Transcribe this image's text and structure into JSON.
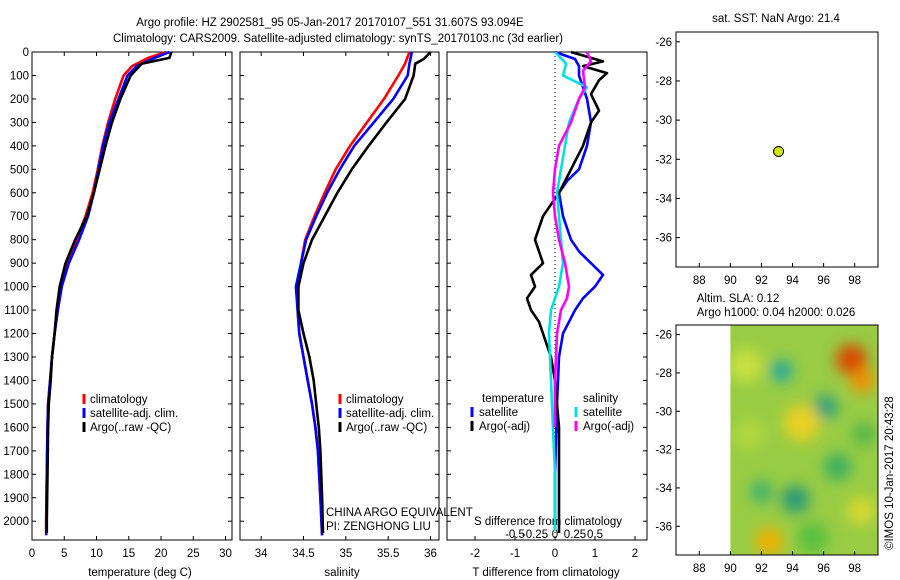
{
  "header": {
    "line1": "Argo profile: HZ 2902581_95 05-Jan-2017 20170107_551 31.607S 93.094E",
    "line2": "Climatology: CARS2009. Satellite-adjusted climatology: synTS_20170103.nc (3d earlier)"
  },
  "footer": {
    "line1": "CHINA ARGO EQUIVALENT",
    "line2": "PI: ZENGHONG LIU",
    "stamp": "©IMOS 10-Jan-2017 20:43:28"
  },
  "colors": {
    "climatology": "#ff0000",
    "satellite": "#0000ff",
    "argo": "#000000",
    "sat_diff": "#00e0e0",
    "argo_s_diff": "#ff00ff",
    "marker": "#d4e600"
  },
  "chart_data": [
    {
      "id": "temperature",
      "type": "line",
      "xlabel": "temperature (deg C)",
      "ylabel": "",
      "xlim": [
        0,
        31
      ],
      "ylim": [
        2080,
        0
      ],
      "xticks": [
        "0",
        "5",
        "10",
        "15",
        "20",
        "25",
        "30"
      ],
      "yticks": [
        "0",
        "100",
        "200",
        "300",
        "400",
        "500",
        "600",
        "700",
        "800",
        "900",
        "1000",
        "1100",
        "1200",
        "1300",
        "1400",
        "1500",
        "1600",
        "1700",
        "1800",
        "1900",
        "2000"
      ],
      "legend": [
        "climatology",
        "satellite-adj. clim.",
        "Argo(..raw -QC)"
      ],
      "series": [
        {
          "name": "climatology",
          "color": "#ff0000",
          "x": [
            20.8,
            18,
            15.5,
            14.2,
            12.9,
            11.8,
            10.9,
            10.2,
            9.4,
            8.3,
            6.9,
            5.5,
            4.6,
            4.0,
            3.5,
            3.1,
            2.8,
            2.5,
            2.4,
            2.3,
            2.2,
            2.2
          ],
          "y": [
            0,
            25,
            60,
            100,
            200,
            300,
            400,
            500,
            600,
            700,
            800,
            900,
            1000,
            1100,
            1200,
            1300,
            1400,
            1500,
            1600,
            1800,
            2000,
            2060
          ]
        },
        {
          "name": "satellite-adj. clim.",
          "color": "#0000ff",
          "x": [
            21.3,
            19,
            16.2,
            14.8,
            13.4,
            12,
            11,
            10.3,
            9.6,
            8.7,
            7.3,
            5.7,
            4.6,
            4.0,
            3.5,
            3.1,
            2.8,
            2.5,
            2.4,
            2.3,
            2.2,
            2.2
          ],
          "y": [
            0,
            25,
            60,
            100,
            200,
            300,
            400,
            500,
            600,
            700,
            800,
            900,
            1000,
            1100,
            1200,
            1300,
            1400,
            1500,
            1600,
            1800,
            2000,
            2060
          ]
        },
        {
          "name": "Argo(..raw -QC)",
          "color": "#000000",
          "x": [
            21.6,
            21.3,
            17,
            15.3,
            13.7,
            12.4,
            11.4,
            10.5,
            9.6,
            8.5,
            6.7,
            5.2,
            4.3,
            3.8,
            3.5,
            3.1,
            2.9,
            2.6,
            2.5,
            2.4,
            2.3,
            2.3
          ],
          "y": [
            0,
            25,
            50,
            100,
            200,
            300,
            400,
            500,
            600,
            700,
            800,
            900,
            1000,
            1100,
            1200,
            1300,
            1400,
            1500,
            1600,
            1800,
            2000,
            2050
          ]
        }
      ]
    },
    {
      "id": "salinity",
      "type": "line",
      "xlabel": "salinity",
      "xlim": [
        33.75,
        36.1
      ],
      "ylim": [
        2080,
        0
      ],
      "xticks": [
        "34",
        "34.5",
        "35",
        "35.5",
        "36"
      ],
      "legend": [
        "climatology",
        "satellite-adj. clim.",
        "Argo(..raw -QC)"
      ],
      "series": [
        {
          "name": "climatology",
          "color": "#ff0000",
          "x": [
            35.75,
            35.7,
            35.62,
            35.45,
            35.25,
            35.05,
            34.88,
            34.75,
            34.63,
            34.52,
            34.47,
            34.44,
            34.43,
            34.45,
            34.5,
            34.55,
            34.6,
            34.64,
            34.67,
            34.7,
            34.72
          ],
          "y": [
            0,
            50,
            100,
            200,
            300,
            400,
            500,
            600,
            700,
            800,
            900,
            1000,
            1100,
            1200,
            1300,
            1400,
            1500,
            1600,
            1700,
            1900,
            2060
          ]
        },
        {
          "name": "satellite-adj. clim.",
          "color": "#0000ff",
          "x": [
            35.78,
            35.75,
            35.73,
            35.56,
            35.33,
            35.1,
            34.93,
            34.78,
            34.65,
            34.53,
            34.47,
            34.41,
            34.43,
            34.45,
            34.5,
            34.55,
            34.6,
            34.64,
            34.67,
            34.7,
            34.72
          ],
          "y": [
            0,
            50,
            100,
            200,
            300,
            400,
            500,
            600,
            700,
            800,
            900,
            1000,
            1100,
            1200,
            1300,
            1400,
            1500,
            1600,
            1700,
            1900,
            2060
          ]
        },
        {
          "name": "Argo(..raw -QC)",
          "color": "#000000",
          "x": [
            36.0,
            35.92,
            35.82,
            35.8,
            35.7,
            35.48,
            35.27,
            35.07,
            34.9,
            34.75,
            34.6,
            34.5,
            34.44,
            34.44,
            34.5,
            34.57,
            34.62,
            34.65,
            34.68,
            34.7,
            34.72,
            34.73
          ],
          "y": [
            0,
            30,
            50,
            100,
            200,
            300,
            400,
            500,
            600,
            700,
            800,
            900,
            1000,
            1100,
            1200,
            1300,
            1400,
            1500,
            1600,
            1700,
            1900,
            2050
          ]
        }
      ]
    },
    {
      "id": "difference",
      "type": "line",
      "xlabel": "T difference from climatology",
      "xlabel_top": "S difference from climatology",
      "xlim": [
        -2.7,
        2.3
      ],
      "ylim": [
        2080,
        0
      ],
      "xticks": [
        "-2",
        "-1",
        "0",
        "1",
        "2"
      ],
      "xticks_s": [
        "-0.5",
        "-0.25",
        "0",
        "0.25",
        "0.5"
      ],
      "legend_titles": [
        "temperature",
        "salinity"
      ],
      "legend": [
        "satellite",
        "Argo(-adj)",
        "satellite",
        "Argo(-adj)"
      ],
      "series": [
        {
          "name": "T satellite",
          "color": "#0000ff",
          "x": [
            0,
            0.5,
            0.6,
            0.6,
            0.7,
            0.8,
            0.9,
            0.8,
            0.6,
            0.3,
            0.1,
            0.2,
            0.3,
            0.4,
            0.6,
            0.9,
            1.2,
            1.0,
            0.7,
            0.5,
            0.35,
            0.2,
            0.1,
            0.05,
            0.0,
            0.0
          ],
          "y": [
            0,
            30,
            60,
            100,
            150,
            200,
            300,
            400,
            500,
            550,
            600,
            700,
            750,
            800,
            850,
            900,
            950,
            1000,
            1050,
            1100,
            1150,
            1200,
            1300,
            1500,
            1800,
            2040
          ]
        },
        {
          "name": "T Argo(-adj)",
          "color": "#000000",
          "x": [
            0.4,
            1.2,
            0.7,
            1.3,
            1.1,
            0.9,
            1.1,
            0.9,
            0.7,
            0.4,
            0.1,
            -0.3,
            -0.5,
            -0.4,
            -0.3,
            -0.6,
            -0.5,
            -0.7,
            -0.6,
            -0.4,
            -0.3,
            -0.2,
            -0.1,
            0.0,
            0.1,
            0.1,
            0.1
          ],
          "y": [
            0,
            40,
            60,
            90,
            120,
            180,
            250,
            300,
            400,
            500,
            600,
            700,
            800,
            850,
            900,
            950,
            1000,
            1050,
            1100,
            1150,
            1200,
            1250,
            1300,
            1400,
            1600,
            1800,
            2050
          ]
        },
        {
          "name": "S satellite",
          "color": "#00e0e0",
          "x": [
            0,
            0.28,
            0.2,
            0.8,
            0.6,
            0.35,
            0.25,
            0.15,
            0.05,
            0.1,
            0.15,
            0.2,
            0.15,
            0.1,
            0.0,
            -0.1,
            -0.15,
            -0.1,
            -0.05,
            0.0,
            0.0
          ],
          "y": [
            0,
            50,
            100,
            150,
            200,
            300,
            400,
            500,
            600,
            700,
            800,
            900,
            950,
            1000,
            1050,
            1100,
            1200,
            1400,
            1600,
            1800,
            2040
          ]
        },
        {
          "name": "S Argo(-adj)",
          "color": "#ff00ff",
          "x": [
            0.8,
            0.9,
            0.7,
            0.75,
            0.6,
            0.4,
            0.1,
            0.0,
            -0.05,
            0.0,
            0.1,
            0.25,
            0.35,
            0.3,
            0.15,
            0.05,
            0.0,
            0.0
          ],
          "y": [
            0,
            40,
            80,
            150,
            200,
            300,
            400,
            500,
            600,
            700,
            800,
            900,
            1000,
            1050,
            1100,
            1200,
            1400,
            1600
          ]
        }
      ]
    },
    {
      "id": "sst-map",
      "type": "scatter",
      "title": "sat. SST: NaN Argo: 21.4",
      "xlim": [
        86.5,
        99.5
      ],
      "ylim": [
        -37.5,
        -25.5
      ],
      "xticks": [
        "88",
        "90",
        "92",
        "94",
        "96",
        "98"
      ],
      "yticks": [
        "-26",
        "-28",
        "-30",
        "-32",
        "-34",
        "-36"
      ],
      "points": [
        {
          "x": 93.1,
          "y": -31.6,
          "color": "#d4e600"
        }
      ]
    },
    {
      "id": "sla-map",
      "type": "heatmap",
      "title": "Altim. SLA: 0.12",
      "subtitle": "Argo h1000: 0.04 h2000: 0.026",
      "xlim": [
        86.5,
        99.5
      ],
      "ylim": [
        -37.5,
        -25.5
      ],
      "xticks": [
        "88",
        "90",
        "92",
        "94",
        "96",
        "98"
      ],
      "yticks": [
        "-26",
        "-28",
        "-30",
        "-32",
        "-34",
        "-36"
      ],
      "data_xlim": [
        90,
        99.5
      ],
      "blobs": [
        {
          "x": 97.8,
          "y": -27.3,
          "r": 1.0,
          "color": "#d84a00"
        },
        {
          "x": 98.5,
          "y": -28.4,
          "r": 0.8,
          "color": "#f09000"
        },
        {
          "x": 92.5,
          "y": -36.8,
          "r": 0.9,
          "color": "#f0b000"
        },
        {
          "x": 94.2,
          "y": -34.6,
          "r": 0.9,
          "color": "#2a9a78"
        },
        {
          "x": 92.0,
          "y": -34.2,
          "r": 0.7,
          "color": "#3ab070"
        },
        {
          "x": 91.0,
          "y": -27.6,
          "r": 1.1,
          "color": "#c8e040"
        },
        {
          "x": 93.3,
          "y": -27.9,
          "r": 0.7,
          "color": "#20a8a0"
        },
        {
          "x": 96.1,
          "y": -29.8,
          "r": 0.8,
          "color": "#2aa080"
        },
        {
          "x": 94.6,
          "y": -30.6,
          "r": 1.2,
          "color": "#e8d020"
        },
        {
          "x": 96.9,
          "y": -32.9,
          "r": 0.9,
          "color": "#40b060"
        },
        {
          "x": 98.4,
          "y": -35.2,
          "r": 0.9,
          "color": "#d8d830"
        },
        {
          "x": 95.3,
          "y": -36.6,
          "r": 1.0,
          "color": "#58c040"
        },
        {
          "x": 91.2,
          "y": -31.2,
          "r": 1.0,
          "color": "#b0d840"
        },
        {
          "x": 98.6,
          "y": -31.2,
          "r": 0.8,
          "color": "#58b848"
        }
      ]
    }
  ]
}
